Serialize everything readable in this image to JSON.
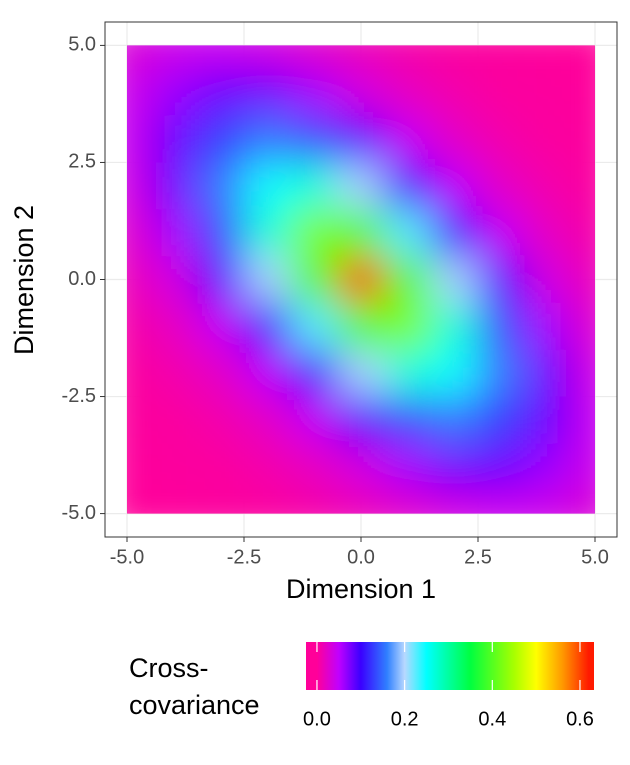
{
  "chart_data": {
    "type": "heatmap",
    "xlabel": "Dimension 1",
    "ylabel": "Dimension 2",
    "x": [
      -5,
      -4,
      -3,
      -2,
      -1,
      0,
      1,
      2,
      3,
      4,
      5
    ],
    "y": [
      5,
      4,
      3,
      2,
      1,
      0,
      -1,
      -2,
      -3,
      -4,
      -5
    ],
    "z": [
      [
        0.029,
        0.039,
        0.042,
        0.036,
        0.024,
        0.014,
        0.007,
        0.003,
        0.002,
        0.001,
        0
      ],
      [
        0.039,
        0.063,
        0.081,
        0.08,
        0.06,
        0.036,
        0.019,
        0.009,
        0.003,
        0.002,
        0.001
      ],
      [
        0.042,
        0.081,
        0.129,
        0.156,
        0.135,
        0.088,
        0.047,
        0.022,
        0.009,
        0.003,
        0.002
      ],
      [
        0.036,
        0.08,
        0.156,
        0.246,
        0.27,
        0.196,
        0.108,
        0.051,
        0.022,
        0.009,
        0.003
      ],
      [
        0.024,
        0.06,
        0.135,
        0.27,
        0.426,
        0.388,
        0.225,
        0.108,
        0.047,
        0.019,
        0.007
      ],
      [
        0.014,
        0.036,
        0.088,
        0.196,
        0.388,
        0.62,
        0.388,
        0.196,
        0.088,
        0.036,
        0.014
      ],
      [
        0.007,
        0.019,
        0.047,
        0.108,
        0.225,
        0.388,
        0.426,
        0.27,
        0.135,
        0.06,
        0.024
      ],
      [
        0.003,
        0.009,
        0.022,
        0.051,
        0.108,
        0.196,
        0.27,
        0.246,
        0.156,
        0.08,
        0.036
      ],
      [
        0.002,
        0.003,
        0.009,
        0.022,
        0.047,
        0.088,
        0.135,
        0.156,
        0.129,
        0.081,
        0.042
      ],
      [
        0.001,
        0.002,
        0.003,
        0.009,
        0.019,
        0.036,
        0.06,
        0.08,
        0.081,
        0.063,
        0.039
      ],
      [
        0,
        0.001,
        0.002,
        0.003,
        0.007,
        0.014,
        0.024,
        0.036,
        0.042,
        0.039,
        0.029
      ]
    ],
    "xlim": [
      -5.47,
      5.47
    ],
    "ylim": [
      -5.5,
      5.5
    ],
    "xticks": [
      {
        "value": -5,
        "label": "-5.0"
      },
      -2.5,
      {
        "value": 0,
        "label": "0.0"
      },
      2.5,
      {
        "value": 5,
        "label": "5.0"
      }
    ],
    "yticks": [
      {
        "value": -5,
        "label": "-5.0"
      },
      -2.5,
      {
        "value": 0,
        "label": "0.0"
      },
      2.5,
      {
        "value": 5,
        "label": "5.0"
      }
    ],
    "grid": true,
    "colorscale": [
      {
        "value": 0,
        "color": "#ff0099"
      },
      {
        "value": 0.05,
        "color": "#c000ff"
      },
      {
        "value": 0.1,
        "color": "#3a00ff"
      },
      {
        "value": 0.16,
        "color": "#3080ff"
      },
      {
        "value": 0.2,
        "color": "#b8d8ff"
      },
      {
        "value": 0.25,
        "color": "#00ffff"
      },
      {
        "value": 0.35,
        "color": "#00ff40"
      },
      {
        "value": 0.45,
        "color": "#a8ff00"
      },
      {
        "value": 0.5,
        "color": "#ffff00"
      },
      {
        "value": 0.56,
        "color": "#ff9900"
      },
      {
        "value": 0.62,
        "color": "#ff1a00"
      }
    ],
    "colorbar": {
      "title": [
        "Cross-",
        "covariance"
      ],
      "lim": [
        -0.025,
        0.632
      ],
      "ticks": [
        {
          "value": 0,
          "label": "0.0"
        },
        0.2,
        0.4,
        0.6
      ]
    }
  }
}
